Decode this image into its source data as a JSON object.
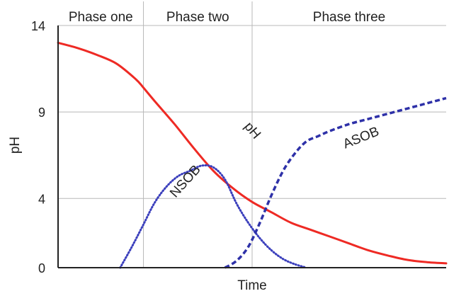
{
  "chart_data": {
    "type": "line",
    "title": "",
    "xlabel": "Time",
    "ylabel": "pH",
    "ylim": [
      0,
      14
    ],
    "xlim": [
      0,
      100
    ],
    "yticks": [
      {
        "value": 0,
        "label": "0"
      },
      {
        "value": 4,
        "label": "4"
      },
      {
        "value": 9,
        "label": "9"
      },
      {
        "value": 14,
        "label": "14"
      }
    ],
    "grid": true,
    "phases": [
      {
        "label": "Phase one",
        "start": 0,
        "end": 22
      },
      {
        "label": "Phase two",
        "start": 22,
        "end": 50
      },
      {
        "label": "Phase three",
        "start": 50,
        "end": 100
      }
    ],
    "series": [
      {
        "name": "pH",
        "style": "solid",
        "color": "#ee2a24",
        "x": [
          0,
          5,
          10,
          15,
          20,
          22,
          25,
          30,
          35,
          40,
          45,
          50,
          55,
          60,
          65,
          70,
          75,
          80,
          85,
          90,
          95,
          100
        ],
        "y": [
          13.0,
          12.7,
          12.3,
          11.8,
          10.9,
          10.4,
          9.6,
          8.3,
          6.9,
          5.6,
          4.6,
          3.8,
          3.2,
          2.6,
          2.2,
          1.8,
          1.4,
          1.0,
          0.7,
          0.45,
          0.32,
          0.25
        ]
      },
      {
        "name": "NSOB",
        "style": "dotted",
        "color": "#3b3fbc",
        "x": [
          16,
          19,
          22,
          25,
          28,
          31,
          34,
          37,
          40,
          43,
          46,
          49,
          52,
          55,
          58,
          61,
          64
        ],
        "y": [
          0,
          1.2,
          2.5,
          3.8,
          4.7,
          5.3,
          5.6,
          5.9,
          5.8,
          5.1,
          3.7,
          2.6,
          1.7,
          1.0,
          0.5,
          0.2,
          0
        ]
      },
      {
        "name": "ASOB",
        "style": "dashed",
        "color": "#2e31a8",
        "x": [
          43,
          46,
          49,
          52,
          55,
          58,
          61,
          64,
          67,
          70,
          75,
          80,
          85,
          90,
          95,
          100
        ],
        "y": [
          0,
          0.4,
          1.2,
          2.6,
          4.2,
          5.6,
          6.6,
          7.3,
          7.6,
          7.9,
          8.3,
          8.6,
          8.9,
          9.2,
          9.5,
          9.8
        ]
      }
    ],
    "annotations": [
      {
        "text": "pH",
        "series": "pH"
      },
      {
        "text": "NSOB",
        "series": "NSOB"
      },
      {
        "text": "ASOB",
        "series": "ASOB"
      }
    ]
  }
}
